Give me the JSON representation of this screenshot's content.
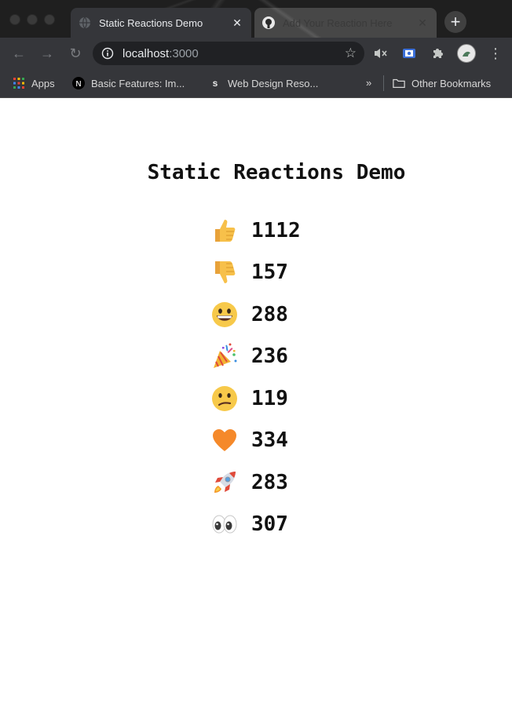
{
  "browser": {
    "tabs": [
      {
        "title": "Static Reactions Demo",
        "active": true,
        "favicon": "globe-icon"
      },
      {
        "title": "Add Your Reaction Here",
        "active": false,
        "favicon": "github-icon"
      }
    ],
    "url": {
      "host": "localhost",
      "port": ":3000"
    },
    "bookmarks": [
      {
        "label": "Apps",
        "icon": "apps-grid-icon"
      },
      {
        "label": "Basic Features: Im...",
        "icon": "nextjs-icon"
      },
      {
        "label": "Web Design Reso...",
        "icon": "s-icon"
      }
    ],
    "overflow_label": "»",
    "other_bookmarks_label": "Other Bookmarks"
  },
  "page": {
    "title": "Static Reactions Demo",
    "reactions": [
      {
        "emoji": "thumbs-up",
        "count": "1112"
      },
      {
        "emoji": "thumbs-down",
        "count": "157"
      },
      {
        "emoji": "grinning-face",
        "count": "288"
      },
      {
        "emoji": "party-popper",
        "count": "236"
      },
      {
        "emoji": "confused-face",
        "count": "119"
      },
      {
        "emoji": "orange-heart",
        "count": "334"
      },
      {
        "emoji": "rocket",
        "count": "283"
      },
      {
        "emoji": "eyes",
        "count": "307"
      }
    ]
  }
}
